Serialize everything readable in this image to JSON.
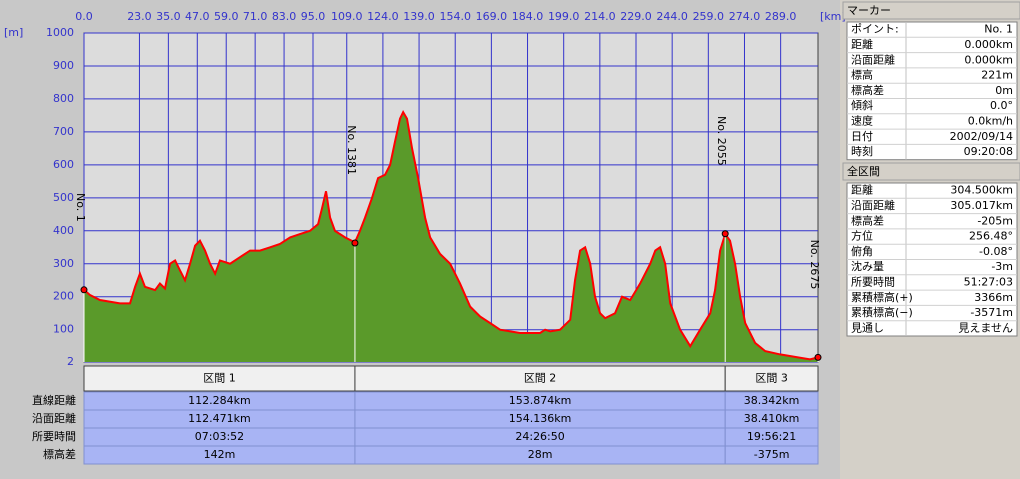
{
  "chart_data": {
    "type": "area",
    "x_unit": "[km]",
    "y_unit": "[m]",
    "x": [
      0,
      2.5,
      6.6,
      14.9,
      19.1,
      21.2,
      23.2,
      25.3,
      29.5,
      31.5,
      33.6,
      35.7,
      37.8,
      39.8,
      41.9,
      44.0,
      46.1,
      48.1,
      50.2,
      52.3,
      54.4,
      56.4,
      60.6,
      64.7,
      68.9,
      73.0,
      77.2,
      81.3,
      85.5,
      89.6,
      93.8,
      97.1,
      98.8,
      100.4,
      102.1,
      104.1,
      108.3,
      112.4,
      114.5,
      116.6,
      119.5,
      122.0,
      124.9,
      127.0,
      129.0,
      131.1,
      132.4,
      134.0,
      136.1,
      138.6,
      141.5,
      143.6,
      147.7,
      151.9,
      156.0,
      160.2,
      164.3,
      168.5,
      172.6,
      176.8,
      180.9,
      185.1,
      189.2,
      191.3,
      193.4,
      197.5,
      201.7,
      203.7,
      205.8,
      207.9,
      210.0,
      212.0,
      214.1,
      216.2,
      220.3,
      223.2,
      226.6,
      230.7,
      234.9,
      237.0,
      239.0,
      241.1,
      243.2,
      247.3,
      251.5,
      255.6,
      259.8,
      261.8,
      263.9,
      266.0,
      268.0,
      270.1,
      272.2,
      274.3,
      278.4,
      282.6,
      288.8,
      297.1,
      301.2,
      304.5
    ],
    "values": [
      221,
      205,
      190,
      180,
      180,
      230,
      270,
      230,
      220,
      240,
      225,
      300,
      310,
      280,
      250,
      300,
      355,
      370,
      340,
      300,
      270,
      310,
      300,
      320,
      340,
      340,
      350,
      360,
      380,
      390,
      400,
      420,
      470,
      520,
      440,
      400,
      380,
      365,
      400,
      440,
      500,
      560,
      570,
      600,
      670,
      740,
      760,
      740,
      650,
      560,
      440,
      380,
      330,
      300,
      240,
      170,
      140,
      120,
      100,
      95,
      90,
      90,
      90,
      100,
      95,
      100,
      130,
      250,
      340,
      350,
      300,
      200,
      150,
      135,
      150,
      200,
      190,
      240,
      300,
      340,
      350,
      300,
      180,
      100,
      50,
      100,
      150,
      220,
      340,
      390,
      370,
      300,
      200,
      120,
      60,
      35,
      25,
      15,
      10,
      16
    ],
    "line_color": "#ff0000",
    "fill_color": "#5a9a2a",
    "xlim": [
      0,
      304.5
    ],
    "ylim": [
      2,
      1000
    ],
    "xticks": [
      {
        "value": 0,
        "label": "0.0"
      },
      {
        "value": 23,
        "label": "23.0"
      },
      {
        "value": 35,
        "label": "35.0"
      },
      {
        "value": 47,
        "label": "47.0"
      },
      {
        "value": 59,
        "label": "59.0"
      },
      {
        "value": 71,
        "label": "71.0"
      },
      {
        "value": 83,
        "label": "83.0"
      },
      {
        "value": 95,
        "label": "95.0"
      },
      {
        "value": 109,
        "label": "109.0"
      },
      {
        "value": 124,
        "label": "124.0"
      },
      {
        "value": 139,
        "label": "139.0"
      },
      {
        "value": 154,
        "label": "154.0"
      },
      {
        "value": 169,
        "label": "169.0"
      },
      {
        "value": 184,
        "label": "184.0"
      },
      {
        "value": 199,
        "label": "199.0"
      },
      {
        "value": 214,
        "label": "214.0"
      },
      {
        "value": 229,
        "label": "229.0"
      },
      {
        "value": 244,
        "label": "244.0"
      },
      {
        "value": 259,
        "label": "259.0"
      },
      {
        "value": 274,
        "label": "274.0"
      },
      {
        "value": 289,
        "label": "289.0"
      }
    ],
    "yticks": [
      2,
      100,
      200,
      300,
      400,
      500,
      600,
      700,
      800,
      900,
      1000
    ],
    "grid": true,
    "markers": [
      {
        "label": "No. 1",
        "x": 0,
        "value": 221
      },
      {
        "label": "No. 1381",
        "x": 112.4,
        "value": 363
      },
      {
        "label": "No. 2055",
        "x": 266.0,
        "value": 391
      },
      {
        "label": "No. 2675",
        "x": 304.5,
        "value": 16
      }
    ]
  },
  "segment_table": {
    "headers": [
      "区間 1",
      "区間 2",
      "区間 3"
    ],
    "rows": [
      {
        "label": "直線距離",
        "cells": [
          "112.284km",
          "153.874km",
          "38.342km"
        ]
      },
      {
        "label": "沿面距離",
        "cells": [
          "112.471km",
          "154.136km",
          "38.410km"
        ]
      },
      {
        "label": "所要時間",
        "cells": [
          "07:03:52",
          "24:26:50",
          "19:56:21"
        ]
      },
      {
        "label": "標高差",
        "cells": [
          "142m",
          "28m",
          "-375m"
        ]
      }
    ]
  },
  "marker_panel": {
    "title": "マーカー",
    "rows": [
      [
        "ポイント:",
        "No. 1"
      ],
      [
        "距離",
        "0.000km"
      ],
      [
        "沿面距離",
        "0.000km"
      ],
      [
        "標高",
        "221m"
      ],
      [
        "標高差",
        "0m"
      ],
      [
        "傾斜",
        "0.0°"
      ],
      [
        "速度",
        "0.0km/h"
      ],
      [
        "日付",
        "2002/09/14"
      ],
      [
        "時刻",
        "09:20:08"
      ]
    ]
  },
  "total_panel": {
    "title": "全区間",
    "rows": [
      [
        "距離",
        "304.500km"
      ],
      [
        "沿面距離",
        "305.017km"
      ],
      [
        "標高差",
        "-205m"
      ],
      [
        "方位",
        "256.48°"
      ],
      [
        "俯角",
        "-0.08°"
      ],
      [
        "沈み量",
        "-3m"
      ],
      [
        "所要時間",
        "51:27:03"
      ],
      [
        "累積標高(+)",
        "3366m"
      ],
      [
        "累積標高(−)",
        "-3571m"
      ],
      [
        "見通し",
        "見えません"
      ]
    ]
  }
}
